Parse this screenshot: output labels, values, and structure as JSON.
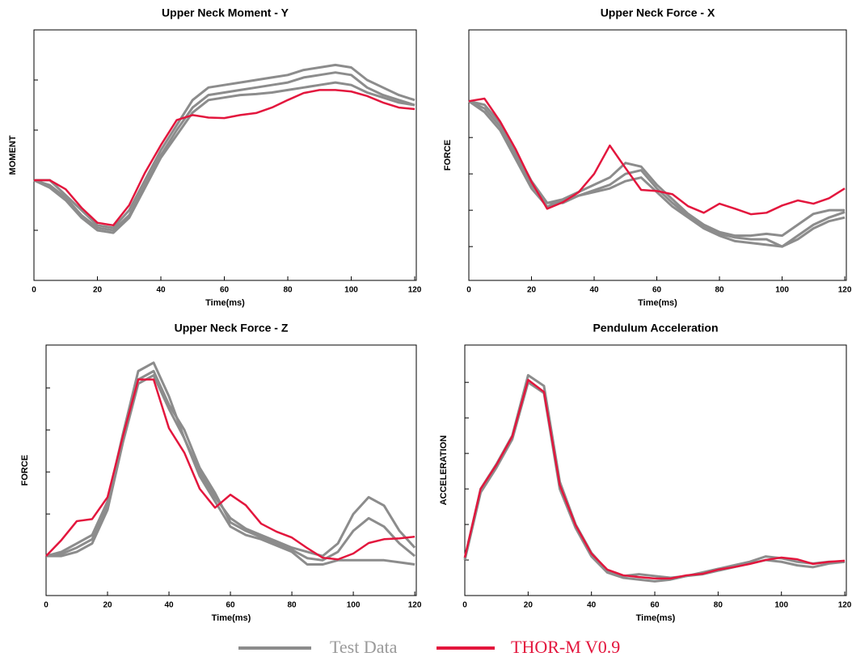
{
  "chart_data": [
    {
      "type": "line",
      "title": "Upper Neck Moment - Y",
      "xlabel": "Time(ms)",
      "ylabel": "MOMENT",
      "x": [
        0,
        5,
        10,
        15,
        20,
        25,
        30,
        35,
        40,
        45,
        50,
        55,
        60,
        65,
        70,
        75,
        80,
        85,
        90,
        95,
        100,
        105,
        110,
        115,
        120
      ],
      "xlim": [
        0,
        120.5
      ],
      "xticks": [
        0,
        20,
        40,
        60,
        80,
        100,
        120
      ],
      "ylim": [
        -2,
        3
      ],
      "yticks": [
        -1,
        0,
        1,
        2
      ],
      "series": [
        {
          "color": "#8c8c8c",
          "values": [
            0,
            0,
            -0.3,
            -0.6,
            -0.9,
            -0.95,
            -0.6,
            0,
            0.6,
            1.1,
            1.6,
            1.85,
            1.9,
            1.95,
            2,
            2.05,
            2.1,
            2.2,
            2.25,
            2.3,
            2.25,
            2.0,
            1.85,
            1.7,
            1.6
          ]
        },
        {
          "color": "#8c8c8c",
          "values": [
            0,
            -0.1,
            -0.35,
            -0.7,
            -0.95,
            -1.0,
            -0.7,
            -0.1,
            0.5,
            1.0,
            1.45,
            1.7,
            1.75,
            1.8,
            1.85,
            1.9,
            1.95,
            2.05,
            2.1,
            2.15,
            2.1,
            1.85,
            1.7,
            1.6,
            1.5
          ]
        },
        {
          "color": "#8c8c8c",
          "values": [
            0,
            -0.15,
            -0.4,
            -0.75,
            -1.0,
            -1.05,
            -0.75,
            -0.15,
            0.45,
            0.9,
            1.35,
            1.6,
            1.65,
            1.7,
            1.72,
            1.75,
            1.8,
            1.85,
            1.9,
            1.95,
            1.9,
            1.75,
            1.65,
            1.55,
            1.5
          ]
        },
        {
          "color": "#e3163d",
          "values": [
            0,
            0,
            -0.18,
            -0.55,
            -0.85,
            -0.9,
            -0.5,
            0.15,
            0.7,
            1.2,
            1.3,
            1.25,
            1.24,
            1.3,
            1.34,
            1.45,
            1.6,
            1.74,
            1.8,
            1.8,
            1.77,
            1.68,
            1.55,
            1.45,
            1.42
          ]
        }
      ]
    },
    {
      "type": "line",
      "title": "Upper Neck Force - X",
      "xlabel": "Time(ms)",
      "ylabel": "FORCE",
      "x": [
        0,
        5,
        10,
        15,
        20,
        25,
        30,
        35,
        40,
        45,
        50,
        55,
        60,
        65,
        70,
        75,
        80,
        85,
        90,
        95,
        100,
        105,
        110,
        115,
        120
      ],
      "xlim": [
        0,
        120.5
      ],
      "xticks": [
        0,
        20,
        40,
        60,
        80,
        100,
        120
      ],
      "ylim": [
        -0.93,
        5.96
      ],
      "yticks": [
        0,
        1,
        2,
        3,
        4
      ],
      "series": [
        {
          "color": "#8c8c8c",
          "values": [
            4,
            3.9,
            3.4,
            2.6,
            1.8,
            1.2,
            1.3,
            1.5,
            1.7,
            1.9,
            2.3,
            2.2,
            1.7,
            1.3,
            0.9,
            0.6,
            0.4,
            0.3,
            0.3,
            0.35,
            0.3,
            0.6,
            0.9,
            1.0,
            1.0
          ]
        },
        {
          "color": "#8c8c8c",
          "values": [
            4,
            3.8,
            3.3,
            2.5,
            1.7,
            1.2,
            1.2,
            1.4,
            1.55,
            1.7,
            2.0,
            2.1,
            1.6,
            1.2,
            0.85,
            0.55,
            0.35,
            0.25,
            0.2,
            0.2,
            0.0,
            0.3,
            0.6,
            0.8,
            0.95
          ]
        },
        {
          "color": "#8c8c8c",
          "values": [
            4,
            3.7,
            3.2,
            2.4,
            1.6,
            1.1,
            1.25,
            1.4,
            1.5,
            1.6,
            1.8,
            1.9,
            1.5,
            1.1,
            0.8,
            0.5,
            0.3,
            0.15,
            0.1,
            0.05,
            0.0,
            0.2,
            0.5,
            0.7,
            0.8
          ]
        },
        {
          "color": "#e3163d",
          "values": [
            4.0,
            4.07,
            3.44,
            2.67,
            1.78,
            1.04,
            1.22,
            1.49,
            2.0,
            2.78,
            2.16,
            1.56,
            1.53,
            1.44,
            1.11,
            0.93,
            1.18,
            1.04,
            0.89,
            0.93,
            1.13,
            1.27,
            1.18,
            1.33,
            1.6
          ]
        }
      ]
    },
    {
      "type": "line",
      "title": "Upper Neck Force - Z",
      "xlabel": "Time(ms)",
      "ylabel": "FORCE",
      "x": [
        0,
        5,
        10,
        15,
        20,
        25,
        30,
        35,
        40,
        45,
        50,
        55,
        60,
        65,
        70,
        75,
        80,
        85,
        90,
        95,
        100,
        105,
        110,
        115,
        120
      ],
      "xlim": [
        0,
        120.5
      ],
      "xticks": [
        0,
        20,
        40,
        60,
        80,
        100,
        120
      ],
      "ylim": [
        -0.94,
        5.02
      ],
      "yticks": [
        0,
        1,
        2,
        3,
        4
      ],
      "series": [
        {
          "color": "#8c8c8c",
          "values": [
            0,
            0.1,
            0.3,
            0.5,
            1.3,
            2.9,
            4.4,
            4.6,
            3.8,
            2.8,
            2.0,
            1.4,
            0.9,
            0.65,
            0.5,
            0.35,
            0.2,
            0.1,
            0.0,
            0.3,
            1.0,
            1.4,
            1.2,
            0.6,
            0.2
          ]
        },
        {
          "color": "#8c8c8c",
          "values": [
            0,
            0.05,
            0.2,
            0.4,
            1.2,
            2.8,
            4.2,
            4.4,
            3.6,
            3.0,
            2.1,
            1.5,
            0.8,
            0.6,
            0.45,
            0.3,
            0.15,
            -0.05,
            -0.1,
            0.1,
            0.6,
            0.9,
            0.7,
            0.3,
            0.0
          ]
        },
        {
          "color": "#8c8c8c",
          "values": [
            0,
            0.0,
            0.1,
            0.3,
            1.1,
            2.7,
            4.1,
            4.3,
            3.5,
            2.8,
            1.9,
            1.3,
            0.7,
            0.5,
            0.4,
            0.25,
            0.1,
            -0.2,
            -0.2,
            -0.1,
            -0.1,
            -0.1,
            -0.1,
            -0.15,
            -0.2
          ]
        },
        {
          "color": "#e3163d",
          "values": [
            0,
            0.38,
            0.83,
            0.88,
            1.4,
            2.85,
            4.2,
            4.2,
            3.04,
            2.46,
            1.6,
            1.15,
            1.46,
            1.21,
            0.77,
            0.58,
            0.44,
            0.19,
            -0.04,
            -0.08,
            0.06,
            0.31,
            0.4,
            0.42,
            0.46
          ]
        }
      ]
    },
    {
      "type": "line",
      "title": "Pendulum Acceleration",
      "xlabel": "Time(ms)",
      "ylabel": "ACCELERATION",
      "x": [
        0,
        5,
        10,
        15,
        20,
        25,
        30,
        35,
        40,
        45,
        50,
        55,
        60,
        65,
        70,
        75,
        80,
        85,
        90,
        95,
        100,
        105,
        110,
        115,
        120
      ],
      "xlim": [
        0,
        120.5
      ],
      "xticks": [
        0,
        20,
        40,
        60,
        80,
        100,
        120
      ],
      "ylim": [
        -1.0,
        6.05
      ],
      "yticks": [
        0,
        1,
        2,
        3,
        4,
        5
      ],
      "series": [
        {
          "color": "#8c8c8c",
          "values": [
            0.05,
            2.0,
            2.7,
            3.5,
            5.2,
            4.9,
            2.2,
            1.0,
            0.2,
            -0.3,
            -0.45,
            -0.4,
            -0.45,
            -0.5,
            -0.45,
            -0.35,
            -0.25,
            -0.15,
            -0.05,
            0.1,
            0.05,
            -0.05,
            -0.1,
            -0.05,
            -0.05
          ]
        },
        {
          "color": "#8c8c8c",
          "values": [
            0.0,
            1.9,
            2.6,
            3.4,
            5.0,
            4.7,
            2.0,
            0.9,
            0.1,
            -0.35,
            -0.5,
            -0.55,
            -0.6,
            -0.55,
            -0.45,
            -0.4,
            -0.3,
            -0.2,
            -0.1,
            0.0,
            -0.05,
            -0.15,
            -0.2,
            -0.1,
            -0.05
          ]
        },
        {
          "color": "#e3163d",
          "values": [
            0.07,
            2.0,
            2.68,
            3.48,
            5.07,
            4.73,
            2.11,
            0.98,
            0.18,
            -0.27,
            -0.43,
            -0.48,
            -0.52,
            -0.52,
            -0.43,
            -0.39,
            -0.27,
            -0.2,
            -0.11,
            0,
            0.07,
            0.02,
            -0.11,
            -0.05,
            -0.02
          ]
        }
      ]
    }
  ],
  "legend": {
    "items": [
      {
        "name": "Test Data",
        "color": "#8c8c8c",
        "text_color": "#9a9a9a"
      },
      {
        "name": "THOR-M V0.9",
        "color": "#e3163d",
        "text_color": "#e3163d"
      }
    ]
  }
}
